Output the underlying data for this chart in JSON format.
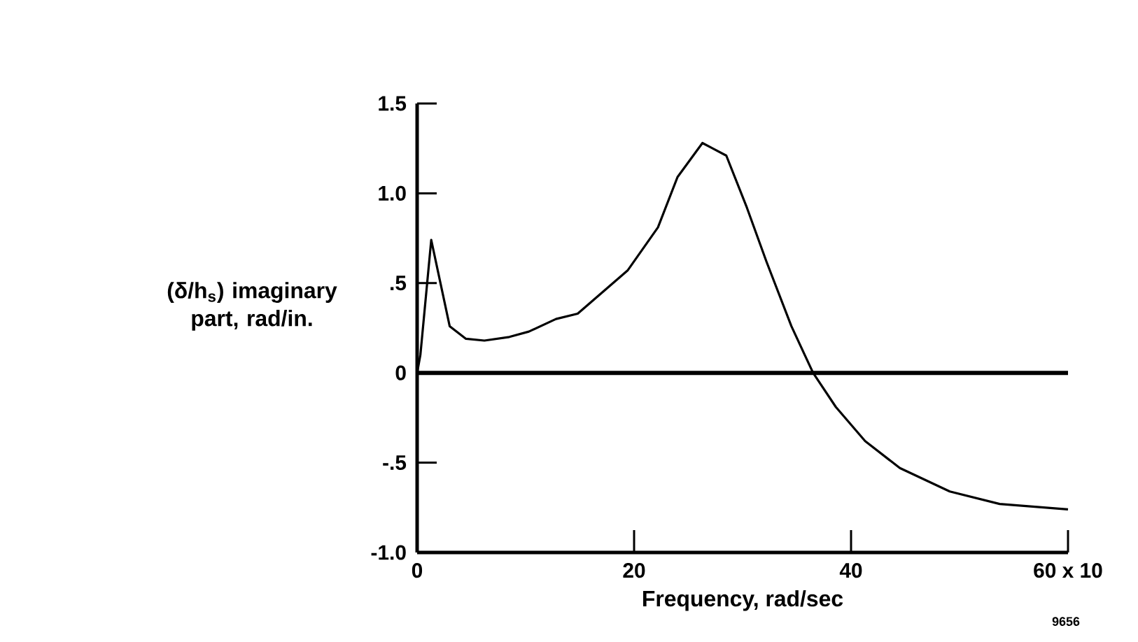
{
  "chart_data": {
    "type": "line",
    "xlabel": "Frequency, rad/sec",
    "ylabel": "(δ/h$_{s}$) imaginary part, rad/in.",
    "x": [
      0,
      0.3,
      1.3,
      3.0,
      4.5,
      6.2,
      8.5,
      10.3,
      12.8,
      14.8,
      19.4,
      22.2,
      24.0,
      26.3,
      28.5,
      30.4,
      32.2,
      34.5,
      36.5,
      38.6,
      41.3,
      44.5,
      49.1,
      53.7,
      60
    ],
    "values": [
      0,
      0.1,
      0.74,
      0.26,
      0.19,
      0.18,
      0.2,
      0.23,
      0.3,
      0.33,
      0.57,
      0.81,
      1.09,
      1.28,
      1.21,
      0.92,
      0.62,
      0.26,
      0,
      -0.19,
      -0.38,
      -0.53,
      -0.66,
      -0.73,
      -0.76
    ],
    "color": "#000000",
    "xlim": [
      0,
      60
    ],
    "ylim": [
      -1.0,
      1.5
    ],
    "xticks": [
      0,
      20,
      40,
      {
        "value": 60,
        "label": "60 x 10"
      }
    ],
    "yticks": [
      {
        "value": -1.0,
        "label": "-1.0"
      },
      {
        "value": -0.5,
        "label": "-.5"
      },
      0,
      {
        "value": 0.5,
        "label": ".5"
      },
      {
        "value": 1.0,
        "label": "1.0"
      },
      1.5
    ],
    "ref_lines": [
      {
        "axis": "y",
        "value": 0,
        "color": "#000000"
      }
    ],
    "annotations": [
      "9656"
    ]
  }
}
